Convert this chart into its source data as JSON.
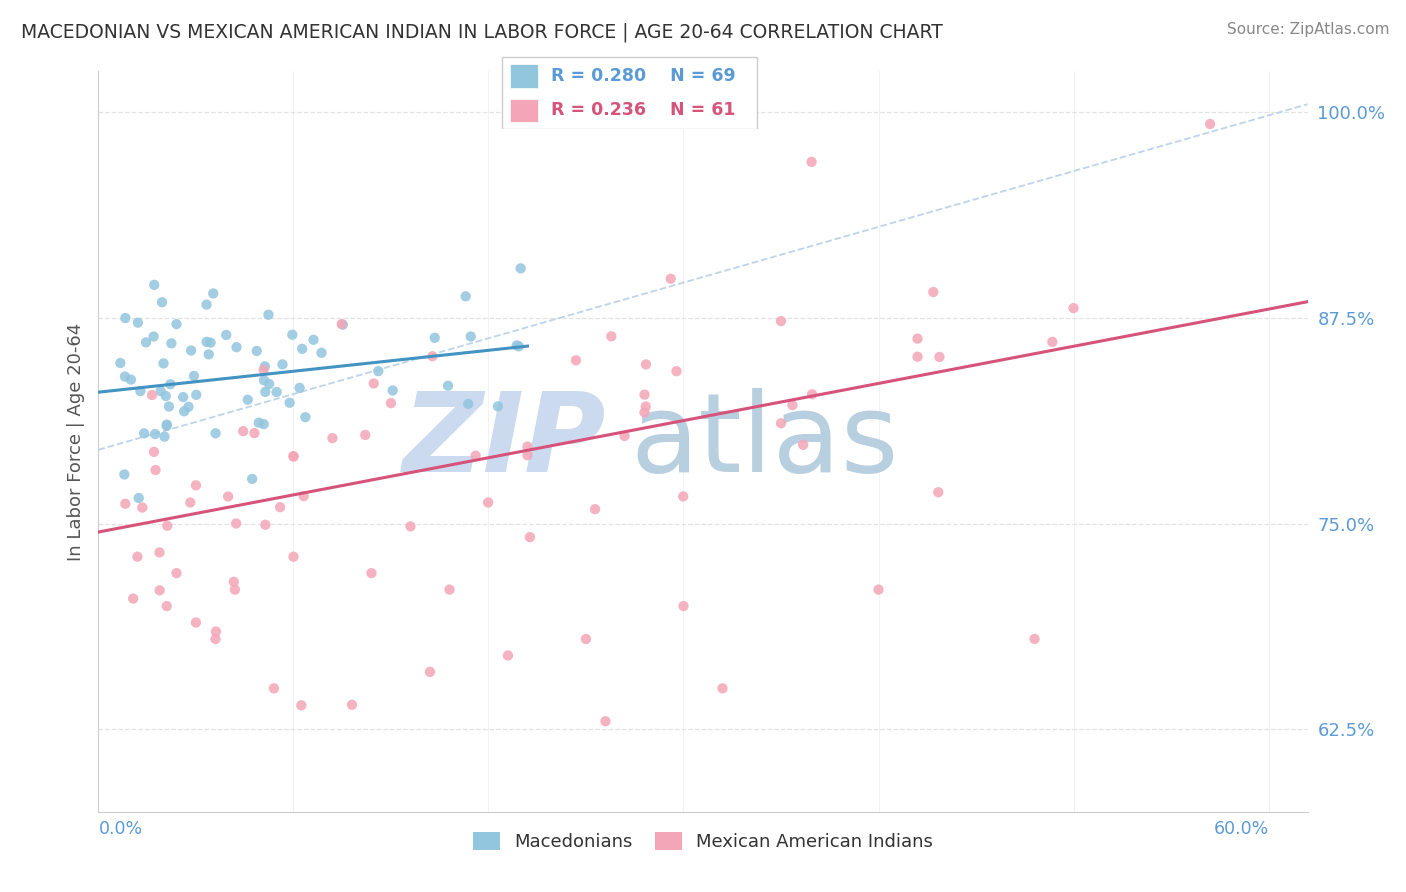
{
  "title": "MACEDONIAN VS MEXICAN AMERICAN INDIAN IN LABOR FORCE | AGE 20-64 CORRELATION CHART",
  "source": "Source: ZipAtlas.com",
  "ylabel": "In Labor Force | Age 20-64",
  "xlim": [
    0.0,
    0.62
  ],
  "ylim": [
    0.575,
    1.025
  ],
  "ytick_positions": [
    0.625,
    0.75,
    0.875,
    1.0
  ],
  "ytick_labels": [
    "62.5%",
    "75.0%",
    "87.5%",
    "100.0%"
  ],
  "legend_r1": "R = 0.280",
  "legend_n1": "N = 69",
  "legend_r2": "R = 0.236",
  "legend_n2": "N = 61",
  "color_macedonian": "#92c5de",
  "color_mexican": "#f4a6b8",
  "color_trend_macedonian": "#4393c3",
  "color_trend_mexican": "#d6537a",
  "color_neutral_trend": "#b8cfe8",
  "watermark_zip_color": "#ccdaf0",
  "watermark_atlas_color": "#b8cfe0",
  "background_color": "#ffffff",
  "grid_color": "#e0e0e0",
  "tick_color": "#5b9bd5",
  "title_color": "#333333",
  "source_color": "#888888",
  "legend_box_color": "#cccccc"
}
